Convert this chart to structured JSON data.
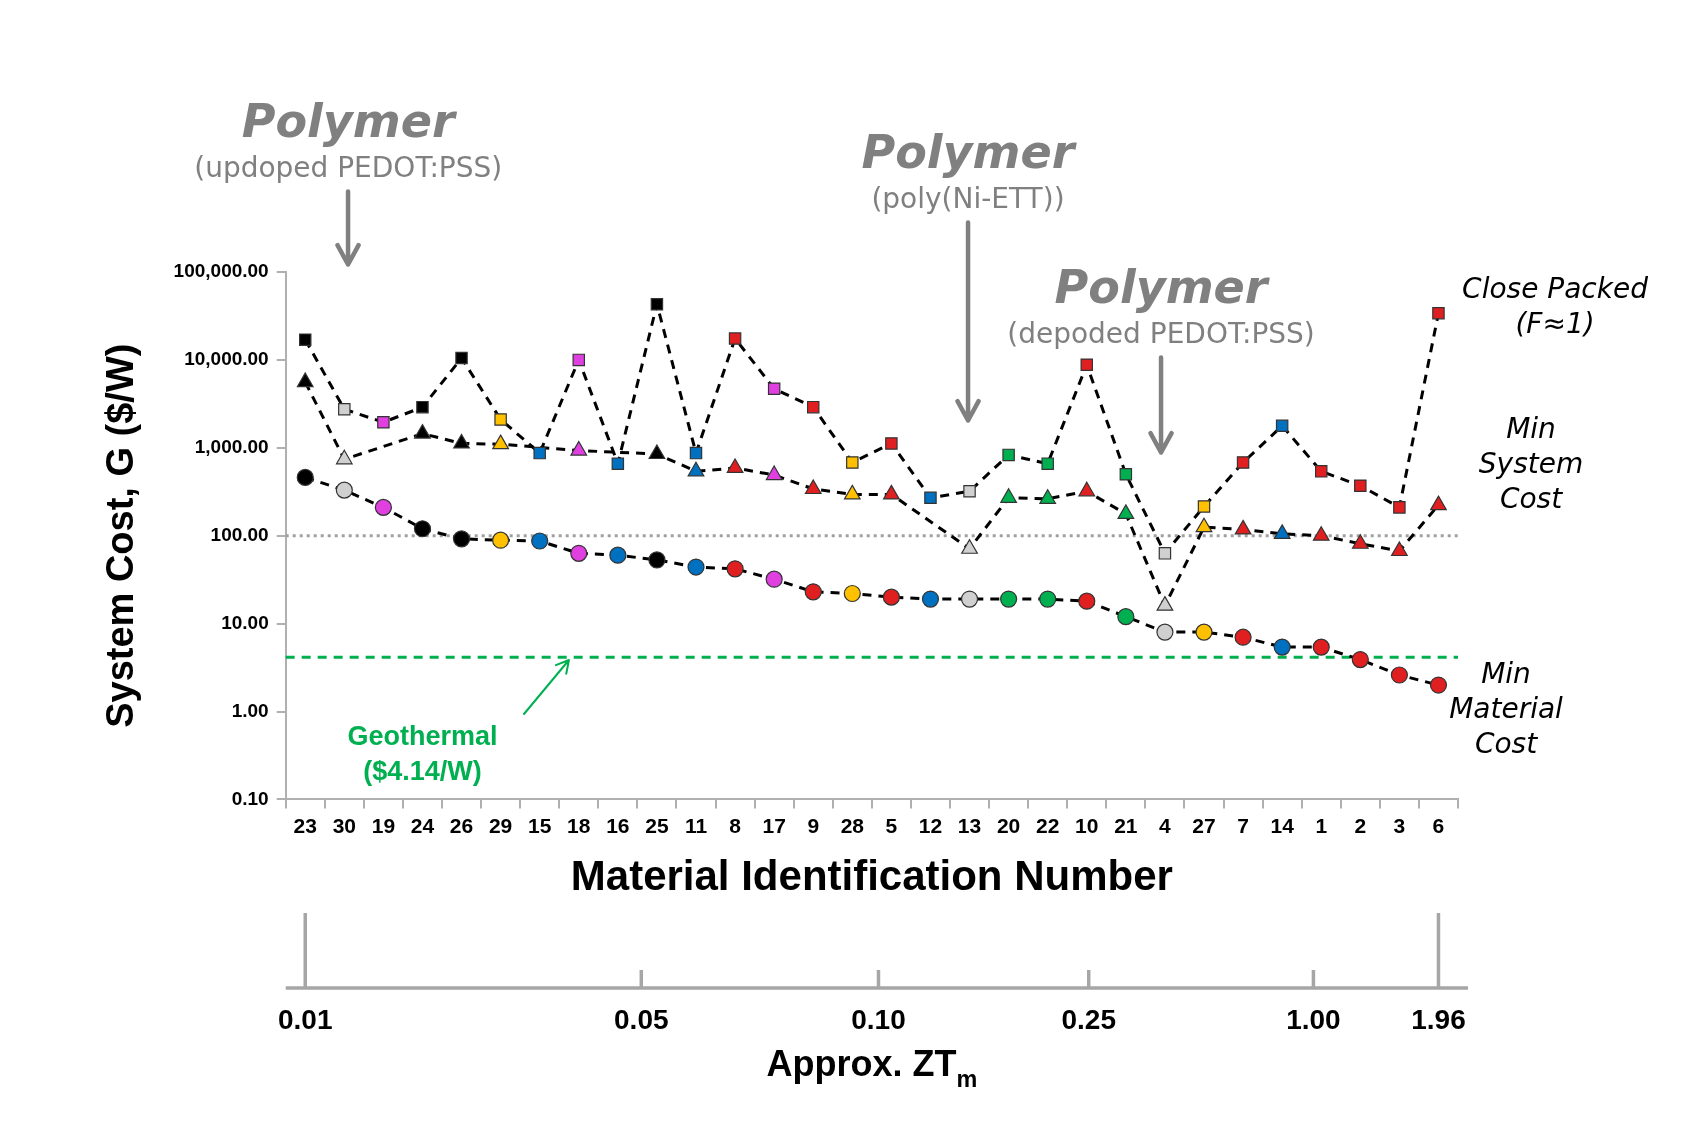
{
  "chart_data": {
    "type": "line",
    "xlabel": "Material Identification Number",
    "ylabel": "System Cost, G ($/W)",
    "categories": [
      "23",
      "30",
      "19",
      "24",
      "26",
      "29",
      "15",
      "18",
      "16",
      "25",
      "11",
      "8",
      "17",
      "9",
      "28",
      "5",
      "12",
      "13",
      "20",
      "22",
      "10",
      "21",
      "4",
      "27",
      "7",
      "14",
      "1",
      "2",
      "3",
      "6"
    ],
    "log": "y",
    "ylim": [
      0.1,
      100000
    ],
    "yticks": [
      {
        "value": 0.1,
        "label": "0.10"
      },
      {
        "value": 1,
        "label": "1.00"
      },
      {
        "value": 10,
        "label": "10.00"
      },
      {
        "value": 100,
        "label": "100.00"
      },
      {
        "value": 1000,
        "label": "1,000.00"
      },
      {
        "value": 10000,
        "label": "10,000.00"
      },
      {
        "value": 100000,
        "label": "100,000.00"
      }
    ],
    "line_style": "dashed",
    "legend": false,
    "grid": false,
    "series": [
      {
        "name": "Close Packed (F≈1)",
        "marker": "square",
        "color": "#000000",
        "values": [
          17000,
          2750,
          1950,
          2900,
          10500,
          2100,
          870,
          10000,
          660,
          43000,
          870,
          17500,
          4700,
          2900,
          680,
          1120,
          270,
          320,
          830,
          660,
          8800,
          500,
          63,
          215,
          680,
          1780,
          540,
          370,
          210,
          34000
        ],
        "colors": [
          "#000000",
          "#d0d0d0",
          "#e040e0",
          "#000000",
          "#000000",
          "#ffc000",
          "#0070c0",
          "#e040e0",
          "#0070c0",
          "#000000",
          "#0070c0",
          "#e02020",
          "#e040e0",
          "#e02020",
          "#ffc000",
          "#e02020",
          "#0070c0",
          "#d0d0d0",
          "#00b050",
          "#00b050",
          "#e02020",
          "#00b050",
          "#d0d0d0",
          "#ffc000",
          "#e02020",
          "#0070c0",
          "#e02020",
          "#e02020",
          "#e02020",
          "#e02020"
        ]
      },
      {
        "name": "Min System Cost",
        "marker": "triangle",
        "color": "#000000",
        "values": [
          5600,
          740,
          null,
          1450,
          1120,
          1100,
          null,
          930,
          null,
          850,
          540,
          590,
          490,
          340,
          295,
          295,
          null,
          71,
          270,
          263,
          320,
          177,
          16,
          125,
          118,
          105,
          100,
          81,
          67,
          223
        ],
        "colors": [
          "#000000",
          "#d0d0d0",
          "#e040e0",
          "#000000",
          "#000000",
          "#ffc000",
          "#0070c0",
          "#e040e0",
          "#0070c0",
          "#000000",
          "#0070c0",
          "#e02020",
          "#e040e0",
          "#e02020",
          "#ffc000",
          "#e02020",
          "#0070c0",
          "#d0d0d0",
          "#00b050",
          "#00b050",
          "#e02020",
          "#00b050",
          "#d0d0d0",
          "#ffc000",
          "#e02020",
          "#0070c0",
          "#e02020",
          "#e02020",
          "#e02020",
          "#e02020"
        ]
      },
      {
        "name": "Min Material Cost",
        "marker": "circle",
        "color": "#000000",
        "values": [
          460,
          330,
          210,
          120,
          92,
          89,
          87,
          63,
          60,
          53,
          44,
          42,
          32,
          23,
          22,
          20,
          19,
          19,
          19,
          19,
          18,
          12,
          8,
          8,
          7,
          5.4,
          5.4,
          3.9,
          2.6,
          2
        ],
        "colors": [
          "#000000",
          "#d0d0d0",
          "#e040e0",
          "#000000",
          "#000000",
          "#ffc000",
          "#0070c0",
          "#e040e0",
          "#0070c0",
          "#000000",
          "#0070c0",
          "#e02020",
          "#e040e0",
          "#e02020",
          "#ffc000",
          "#e02020",
          "#0070c0",
          "#d0d0d0",
          "#00b050",
          "#00b050",
          "#e02020",
          "#00b050",
          "#d0d0d0",
          "#ffc000",
          "#e02020",
          "#0070c0",
          "#e02020",
          "#e02020",
          "#e02020",
          "#e02020"
        ]
      }
    ],
    "ref_lines": [
      {
        "axis": "y",
        "value": 100,
        "color": "#a0a0a0",
        "line_style": "dotted"
      },
      {
        "axis": "y",
        "value": 4.14,
        "label": "Geothermal ($4.14/W)",
        "color": "#00b050",
        "line_style": "dashed"
      }
    ],
    "annotations": [
      "Polymer",
      "(updoped PEDOT:PSS)",
      "Polymer",
      "(poly(Ni-ETT))",
      "Polymer",
      "(depoded PEDOT:PSS)",
      "0.01",
      "0.05",
      "0.10",
      "0.25",
      "1.00",
      "1.96",
      "Approx. ZT$_{m}$"
    ]
  }
}
